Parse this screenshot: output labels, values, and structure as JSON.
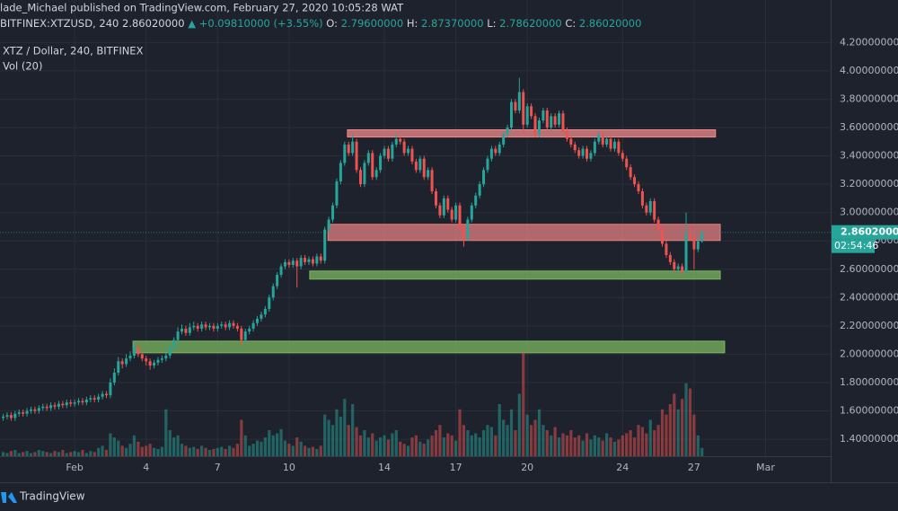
{
  "chart_data": {
    "type": "candlestick",
    "header": {
      "byline": "lade_Michael published on TradingView.com, February 27, 2020 10:05:28 WAT",
      "symbol": "BITFINEX:XTZUSD, 240",
      "price": "2.86020000",
      "change": "▲ +0.09810000 (+3.55%)",
      "ohlc": [
        {
          "key": "O:",
          "val": "2.79600000"
        },
        {
          "key": "H:",
          "val": "2.87370000"
        },
        {
          "key": "L:",
          "val": "2.78620000"
        },
        {
          "key": "C:",
          "val": "2.86020000"
        }
      ]
    },
    "legend": [
      "XTZ / Dollar, 240, BITFINEX",
      "Vol (20)"
    ],
    "up_color": "#26a69a",
    "down_color": "#ef5350",
    "xlim": [
      -0.8,
      208.4
    ],
    "ylim": [
      1.28,
      4.5
    ],
    "xticks": [
      {
        "value": 18,
        "label": "Feb"
      },
      {
        "value": 36,
        "label": "4"
      },
      {
        "value": 54,
        "label": "7"
      },
      {
        "value": 72,
        "label": "10"
      },
      {
        "value": 96,
        "label": "14"
      },
      {
        "value": 114,
        "label": "17"
      },
      {
        "value": 132,
        "label": "20"
      },
      {
        "value": 156,
        "label": "24"
      },
      {
        "value": 174,
        "label": "27"
      },
      {
        "value": 192,
        "label": "Mar"
      }
    ],
    "yticks": [
      {
        "value": 1.4,
        "label": "1.40000000"
      },
      {
        "value": 1.6,
        "label": "1.60000000"
      },
      {
        "value": 1.8,
        "label": "1.80000000"
      },
      {
        "value": 2.0,
        "label": "2.00000000"
      },
      {
        "value": 2.2,
        "label": "2.20000000"
      },
      {
        "value": 2.4,
        "label": "2.40000000"
      },
      {
        "value": 2.6,
        "label": "2.60000000"
      },
      {
        "value": 2.8,
        "label": "2.80000000"
      },
      {
        "value": 3.0,
        "label": "3.00000000"
      },
      {
        "value": 3.2,
        "label": "3.20000000"
      },
      {
        "value": 3.4,
        "label": "3.40000000"
      },
      {
        "value": 3.6,
        "label": "3.60000000"
      },
      {
        "value": 3.8,
        "label": "3.80000000"
      },
      {
        "value": 4.0,
        "label": "4.00000000"
      },
      {
        "value": 4.2,
        "label": "4.20000000"
      }
    ],
    "grid": true,
    "last_price": {
      "value": 2.8602,
      "label": "2.86020000"
    },
    "countdown": "02:54:46",
    "zones": [
      {
        "color": "#f28b8b",
        "from": 86.7,
        "to": 179.4,
        "low": 3.533,
        "high": 3.584
      },
      {
        "color": "#e57f7f",
        "from": 81.8,
        "to": 180.6,
        "low": 2.803,
        "high": 2.917
      },
      {
        "color": "#7cb860",
        "from": 77.2,
        "to": 180.6,
        "low": 2.53,
        "high": 2.587
      },
      {
        "color": "#7cb860",
        "from": 32.7,
        "to": 181.7,
        "low": 2.01,
        "high": 2.092
      }
    ],
    "candles": [
      [
        1.55,
        1.58,
        1.53,
        1.56
      ],
      [
        1.56,
        1.59,
        1.54,
        1.57
      ],
      [
        1.57,
        1.59,
        1.53,
        1.55
      ],
      [
        1.55,
        1.6,
        1.53,
        1.58
      ],
      [
        1.58,
        1.61,
        1.56,
        1.59
      ],
      [
        1.59,
        1.61,
        1.56,
        1.58
      ],
      [
        1.58,
        1.62,
        1.56,
        1.6
      ],
      [
        1.6,
        1.63,
        1.58,
        1.61
      ],
      [
        1.61,
        1.63,
        1.58,
        1.6
      ],
      [
        1.6,
        1.64,
        1.58,
        1.62
      ],
      [
        1.62,
        1.65,
        1.6,
        1.63
      ],
      [
        1.63,
        1.65,
        1.6,
        1.62
      ],
      [
        1.62,
        1.66,
        1.6,
        1.64
      ],
      [
        1.64,
        1.66,
        1.61,
        1.63
      ],
      [
        1.63,
        1.67,
        1.61,
        1.65
      ],
      [
        1.65,
        1.67,
        1.62,
        1.64
      ],
      [
        1.64,
        1.68,
        1.62,
        1.66
      ],
      [
        1.66,
        1.68,
        1.63,
        1.65
      ],
      [
        1.65,
        1.68,
        1.63,
        1.66
      ],
      [
        1.66,
        1.69,
        1.64,
        1.67
      ],
      [
        1.67,
        1.69,
        1.64,
        1.66
      ],
      [
        1.66,
        1.7,
        1.64,
        1.68
      ],
      [
        1.68,
        1.71,
        1.66,
        1.69
      ],
      [
        1.69,
        1.71,
        1.66,
        1.68
      ],
      [
        1.68,
        1.72,
        1.66,
        1.7
      ],
      [
        1.7,
        1.74,
        1.68,
        1.72
      ],
      [
        1.72,
        1.74,
        1.69,
        1.71
      ],
      [
        1.71,
        1.83,
        1.69,
        1.8
      ],
      [
        1.8,
        1.9,
        1.78,
        1.87
      ],
      [
        1.87,
        1.98,
        1.85,
        1.95
      ],
      [
        1.95,
        1.97,
        1.9,
        1.93
      ],
      [
        1.93,
        2.0,
        1.91,
        1.97
      ],
      [
        1.97,
        2.02,
        1.95,
        1.99
      ],
      [
        1.99,
        2.08,
        1.97,
        2.05
      ],
      [
        2.05,
        2.07,
        1.98,
        2.0
      ],
      [
        2.0,
        2.02,
        1.95,
        1.97
      ],
      [
        1.97,
        1.99,
        1.92,
        1.95
      ],
      [
        1.95,
        1.97,
        1.89,
        1.92
      ],
      [
        1.92,
        1.96,
        1.9,
        1.94
      ],
      [
        1.94,
        1.98,
        1.92,
        1.96
      ],
      [
        1.96,
        1.99,
        1.94,
        1.97
      ],
      [
        1.97,
        2.01,
        1.95,
        1.99
      ],
      [
        1.99,
        2.07,
        1.97,
        2.05
      ],
      [
        2.05,
        2.12,
        2.03,
        2.1
      ],
      [
        2.1,
        2.19,
        2.08,
        2.16
      ],
      [
        2.16,
        2.21,
        2.14,
        2.18
      ],
      [
        2.18,
        2.2,
        2.13,
        2.15
      ],
      [
        2.15,
        2.22,
        2.13,
        2.19
      ],
      [
        2.19,
        2.23,
        2.17,
        2.2
      ],
      [
        2.2,
        2.22,
        2.16,
        2.18
      ],
      [
        2.18,
        2.23,
        2.16,
        2.21
      ],
      [
        2.21,
        2.23,
        2.17,
        2.19
      ],
      [
        2.19,
        2.22,
        2.17,
        2.2
      ],
      [
        2.2,
        2.22,
        2.16,
        2.18
      ],
      [
        2.18,
        2.22,
        2.16,
        2.2
      ],
      [
        2.2,
        2.23,
        2.18,
        2.21
      ],
      [
        2.21,
        2.23,
        2.17,
        2.19
      ],
      [
        2.19,
        2.24,
        2.17,
        2.22
      ],
      [
        2.22,
        2.24,
        2.18,
        2.2
      ],
      [
        2.2,
        2.22,
        2.16,
        2.18
      ],
      [
        2.18,
        2.2,
        2.06,
        2.1
      ],
      [
        2.1,
        2.18,
        2.08,
        2.16
      ],
      [
        2.16,
        2.2,
        2.14,
        2.18
      ],
      [
        2.18,
        2.24,
        2.16,
        2.22
      ],
      [
        2.22,
        2.27,
        2.2,
        2.25
      ],
      [
        2.25,
        2.3,
        2.23,
        2.28
      ],
      [
        2.28,
        2.34,
        2.26,
        2.32
      ],
      [
        2.32,
        2.42,
        2.3,
        2.4
      ],
      [
        2.4,
        2.5,
        2.38,
        2.48
      ],
      [
        2.48,
        2.58,
        2.46,
        2.56
      ],
      [
        2.56,
        2.64,
        2.54,
        2.62
      ],
      [
        2.62,
        2.67,
        2.6,
        2.65
      ],
      [
        2.65,
        2.67,
        2.61,
        2.63
      ],
      [
        2.63,
        2.68,
        2.61,
        2.66
      ],
      [
        2.66,
        2.68,
        2.47,
        2.62
      ],
      [
        2.62,
        2.7,
        2.6,
        2.68
      ],
      [
        2.68,
        2.7,
        2.63,
        2.65
      ],
      [
        2.65,
        2.69,
        2.63,
        2.67
      ],
      [
        2.67,
        2.69,
        2.62,
        2.64
      ],
      [
        2.64,
        2.71,
        2.62,
        2.69
      ],
      [
        2.69,
        2.71,
        2.64,
        2.66
      ],
      [
        2.66,
        2.9,
        2.64,
        2.88
      ],
      [
        2.88,
        2.97,
        2.86,
        2.95
      ],
      [
        2.95,
        3.07,
        2.93,
        3.05
      ],
      [
        3.05,
        3.24,
        3.03,
        3.22
      ],
      [
        3.22,
        3.37,
        3.2,
        3.35
      ],
      [
        3.35,
        3.5,
        3.33,
        3.48
      ],
      [
        3.48,
        3.5,
        3.4,
        3.42
      ],
      [
        3.42,
        3.55,
        3.4,
        3.5
      ],
      [
        3.5,
        3.52,
        3.28,
        3.3
      ],
      [
        3.3,
        3.32,
        3.18,
        3.2
      ],
      [
        3.2,
        3.37,
        3.18,
        3.35
      ],
      [
        3.35,
        3.44,
        3.33,
        3.42
      ],
      [
        3.42,
        3.44,
        3.23,
        3.25
      ],
      [
        3.25,
        3.32,
        3.23,
        3.3
      ],
      [
        3.3,
        3.42,
        3.28,
        3.4
      ],
      [
        3.4,
        3.47,
        3.38,
        3.45
      ],
      [
        3.45,
        3.47,
        3.36,
        3.38
      ],
      [
        3.38,
        3.5,
        3.36,
        3.48
      ],
      [
        3.48,
        3.55,
        3.46,
        3.52
      ],
      [
        3.52,
        3.54,
        3.48,
        3.5
      ],
      [
        3.5,
        3.52,
        3.4,
        3.42
      ],
      [
        3.42,
        3.47,
        3.4,
        3.45
      ],
      [
        3.45,
        3.47,
        3.34,
        3.36
      ],
      [
        3.36,
        3.38,
        3.28,
        3.3
      ],
      [
        3.3,
        3.4,
        3.28,
        3.38
      ],
      [
        3.38,
        3.4,
        3.23,
        3.25
      ],
      [
        3.25,
        3.32,
        3.23,
        3.3
      ],
      [
        3.3,
        3.32,
        3.13,
        3.15
      ],
      [
        3.15,
        3.17,
        3.03,
        3.05
      ],
      [
        3.05,
        3.07,
        2.96,
        2.98
      ],
      [
        2.98,
        3.12,
        2.96,
        3.1
      ],
      [
        3.1,
        3.12,
        3.0,
        3.02
      ],
      [
        3.02,
        3.04,
        2.93,
        2.95
      ],
      [
        2.95,
        3.07,
        2.93,
        3.05
      ],
      [
        3.05,
        3.07,
        2.88,
        2.9
      ],
      [
        2.9,
        2.92,
        2.76,
        2.82
      ],
      [
        2.82,
        2.97,
        2.8,
        2.95
      ],
      [
        2.95,
        3.07,
        2.93,
        3.05
      ],
      [
        3.05,
        3.14,
        3.03,
        3.12
      ],
      [
        3.12,
        3.22,
        3.1,
        3.2
      ],
      [
        3.2,
        3.32,
        3.18,
        3.3
      ],
      [
        3.3,
        3.4,
        3.28,
        3.38
      ],
      [
        3.38,
        3.47,
        3.36,
        3.45
      ],
      [
        3.45,
        3.47,
        3.4,
        3.42
      ],
      [
        3.42,
        3.5,
        3.4,
        3.48
      ],
      [
        3.48,
        3.57,
        3.46,
        3.55
      ],
      [
        3.55,
        3.62,
        3.53,
        3.6
      ],
      [
        3.6,
        3.8,
        3.58,
        3.78
      ],
      [
        3.78,
        3.8,
        3.7,
        3.72
      ],
      [
        3.72,
        3.95,
        3.7,
        3.85
      ],
      [
        3.85,
        3.87,
        3.55,
        3.62
      ],
      [
        3.62,
        3.77,
        3.6,
        3.75
      ],
      [
        3.75,
        3.77,
        3.66,
        3.68
      ],
      [
        3.68,
        3.7,
        3.53,
        3.55
      ],
      [
        3.55,
        3.67,
        3.53,
        3.65
      ],
      [
        3.65,
        3.74,
        3.63,
        3.72
      ],
      [
        3.72,
        3.74,
        3.58,
        3.6
      ],
      [
        3.6,
        3.7,
        3.58,
        3.68
      ],
      [
        3.68,
        3.7,
        3.6,
        3.62
      ],
      [
        3.62,
        3.72,
        3.6,
        3.7
      ],
      [
        3.7,
        3.72,
        3.56,
        3.58
      ],
      [
        3.58,
        3.6,
        3.5,
        3.52
      ],
      [
        3.52,
        3.54,
        3.46,
        3.48
      ],
      [
        3.48,
        3.5,
        3.42,
        3.44
      ],
      [
        3.44,
        3.46,
        3.38,
        3.4
      ],
      [
        3.4,
        3.47,
        3.38,
        3.45
      ],
      [
        3.45,
        3.47,
        3.36,
        3.38
      ],
      [
        3.38,
        3.44,
        3.36,
        3.42
      ],
      [
        3.42,
        3.52,
        3.4,
        3.5
      ],
      [
        3.5,
        3.57,
        3.48,
        3.55
      ],
      [
        3.55,
        3.57,
        3.46,
        3.48
      ],
      [
        3.48,
        3.54,
        3.46,
        3.52
      ],
      [
        3.52,
        3.54,
        3.43,
        3.45
      ],
      [
        3.45,
        3.52,
        3.43,
        3.5
      ],
      [
        3.5,
        3.52,
        3.4,
        3.42
      ],
      [
        3.42,
        3.44,
        3.36,
        3.38
      ],
      [
        3.38,
        3.4,
        3.3,
        3.32
      ],
      [
        3.32,
        3.34,
        3.23,
        3.25
      ],
      [
        3.25,
        3.27,
        3.18,
        3.2
      ],
      [
        3.2,
        3.22,
        3.13,
        3.15
      ],
      [
        3.15,
        3.17,
        3.03,
        3.05
      ],
      [
        3.05,
        3.07,
        2.98,
        3.0
      ],
      [
        3.0,
        3.1,
        2.98,
        3.08
      ],
      [
        3.08,
        3.1,
        2.93,
        2.95
      ],
      [
        2.95,
        2.97,
        2.86,
        2.88
      ],
      [
        2.88,
        2.9,
        2.76,
        2.78
      ],
      [
        2.78,
        2.8,
        2.68,
        2.7
      ],
      [
        2.7,
        2.72,
        2.63,
        2.65
      ],
      [
        2.65,
        2.67,
        2.58,
        2.6
      ],
      [
        2.6,
        2.64,
        2.58,
        2.62
      ],
      [
        2.62,
        2.64,
        2.56,
        2.58
      ],
      [
        2.58,
        3.0,
        2.56,
        2.85
      ],
      [
        2.85,
        2.9,
        2.8,
        2.82
      ],
      [
        2.82,
        2.84,
        2.6,
        2.74
      ],
      [
        2.74,
        2.82,
        2.72,
        2.796
      ],
      [
        2.796,
        2.8737,
        2.7862,
        2.8602
      ]
    ],
    "volume": [
      4,
      3,
      5,
      6,
      3,
      4,
      5,
      3,
      4,
      6,
      5,
      4,
      3,
      5,
      4,
      6,
      3,
      4,
      5,
      4,
      6,
      3,
      5,
      4,
      8,
      10,
      6,
      22,
      18,
      15,
      10,
      8,
      12,
      20,
      14,
      9,
      10,
      12,
      8,
      7,
      9,
      45,
      25,
      18,
      20,
      12,
      10,
      8,
      9,
      7,
      10,
      8,
      6,
      7,
      8,
      9,
      7,
      10,
      8,
      12,
      35,
      20,
      10,
      12,
      15,
      14,
      18,
      25,
      20,
      22,
      26,
      15,
      12,
      10,
      18,
      14,
      10,
      8,
      9,
      7,
      10,
      40,
      35,
      30,
      45,
      38,
      55,
      30,
      50,
      28,
      20,
      25,
      18,
      22,
      15,
      18,
      20,
      16,
      22,
      25,
      14,
      12,
      10,
      18,
      20,
      14,
      12,
      16,
      20,
      25,
      30,
      18,
      22,
      20,
      15,
      45,
      30,
      25,
      20,
      22,
      18,
      25,
      30,
      28,
      20,
      50,
      35,
      30,
      45,
      25,
      60,
      100,
      40,
      30,
      35,
      45,
      30,
      25,
      20,
      28,
      18,
      22,
      20,
      25,
      18,
      20,
      15,
      22,
      16,
      20,
      18,
      15,
      22,
      18,
      14,
      16,
      20,
      22,
      25,
      18,
      30,
      28,
      22,
      35,
      25,
      30,
      45,
      40,
      50,
      60,
      45,
      55,
      70,
      65,
      40,
      20,
      8
    ],
    "footer": "TradingView"
  }
}
